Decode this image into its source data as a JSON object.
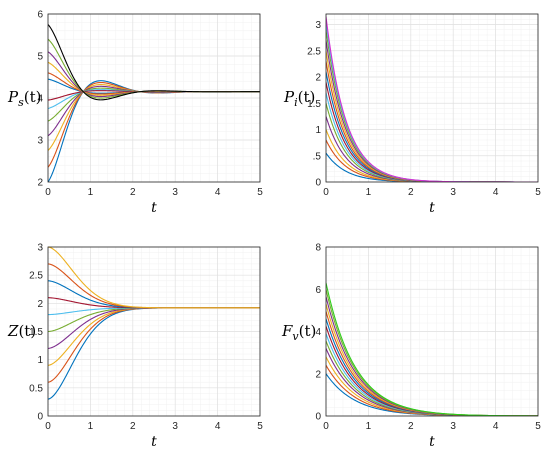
{
  "palette": [
    "#0072bd",
    "#d95319",
    "#edb120",
    "#7e2f8e",
    "#77ac30",
    "#4dbeee",
    "#a2142f"
  ],
  "chart_data": [
    {
      "type": "line",
      "panel": "top-left",
      "ylabel": "P_s(t)",
      "ylabel_main": "P",
      "ylabel_sub": "s",
      "ylabel_arg": "(t)",
      "xlabel": "t",
      "xlim": [
        0,
        5
      ],
      "ylim": [
        2,
        6
      ],
      "xticks": [
        0,
        1,
        2,
        3,
        4,
        5
      ],
      "yticks": [
        2,
        3,
        4,
        5,
        6
      ],
      "grid": true,
      "model": "oscillating",
      "equilibrium": 4.15,
      "initial_values": [
        2.0,
        2.35,
        2.75,
        3.1,
        3.45,
        3.75,
        3.95,
        4.45,
        4.6,
        4.85,
        5.1,
        5.4,
        5.75
      ],
      "last_series_color": "#000000"
    },
    {
      "type": "line",
      "panel": "top-right",
      "ylabel": "P_i(t)",
      "ylabel_main": "P",
      "ylabel_sub": "i",
      "ylabel_arg": "(t)",
      "xlabel": "t",
      "xlim": [
        0,
        5
      ],
      "ylim": [
        0,
        3.2
      ],
      "xticks": [
        0,
        1,
        2,
        3,
        4,
        5
      ],
      "yticks": [
        0,
        0.5,
        1,
        1.5,
        2,
        2.5,
        3
      ],
      "ytick_labels": [
        "0",
        ".5",
        "1",
        "1.5",
        "2",
        "2.5",
        "3"
      ],
      "grid": true,
      "model": "decay",
      "decay_rate": 2.1,
      "initial_values": [
        0.55,
        0.8,
        1.0,
        1.25,
        1.5,
        1.7,
        1.9,
        2.1,
        2.3,
        2.5,
        2.7,
        2.9,
        3.05,
        3.15
      ],
      "last_series_color": "#d62fd2"
    },
    {
      "type": "line",
      "panel": "bottom-left",
      "ylabel": "Z(t)",
      "ylabel_main": "Z",
      "ylabel_sub": "",
      "ylabel_arg": "(t)",
      "xlabel": "t",
      "xlim": [
        0,
        5
      ],
      "ylim": [
        0,
        3
      ],
      "xticks": [
        0,
        1,
        2,
        3,
        4,
        5
      ],
      "yticks": [
        0,
        0.5,
        1,
        1.5,
        2,
        2.5,
        3
      ],
      "grid": true,
      "model": "sigmoid",
      "equilibrium": 1.92,
      "initial_values": [
        0.3,
        0.6,
        0.9,
        1.2,
        1.5,
        1.8,
        2.1,
        2.4,
        2.7,
        3.0
      ]
    },
    {
      "type": "line",
      "panel": "bottom-right",
      "ylabel": "F_v(t)",
      "ylabel_main": "F",
      "ylabel_sub": "v",
      "ylabel_arg": "(t)",
      "xlabel": "t",
      "xlim": [
        0,
        5
      ],
      "ylim": [
        0,
        8
      ],
      "xticks": [
        0,
        1,
        2,
        3,
        4,
        5
      ],
      "yticks": [
        0,
        2,
        4,
        6,
        8
      ],
      "grid": true,
      "model": "decay",
      "decay_rate": 1.45,
      "initial_values": [
        2.0,
        2.4,
        2.8,
        3.2,
        3.55,
        3.9,
        4.25,
        4.6,
        4.95,
        5.3,
        5.65,
        6.0,
        6.3
      ],
      "last_series_color": "#2ecc1a"
    }
  ]
}
